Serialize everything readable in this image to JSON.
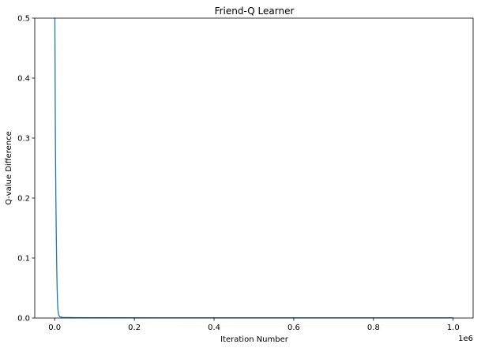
{
  "chart_data": {
    "type": "line",
    "title": "Friend-Q Learner",
    "xlabel": "Iteration Number",
    "ylabel": "Q-value Difference",
    "x_offset_label": "1e6",
    "xlim": [
      -0.05,
      1.05
    ],
    "ylim": [
      0,
      0.5
    ],
    "x_ticks": [
      0.0,
      0.2,
      0.4,
      0.6,
      0.8,
      1.0
    ],
    "x_tick_labels": [
      "0.0",
      "0.2",
      "0.4",
      "0.6",
      "0.8",
      "1.0"
    ],
    "y_ticks": [
      0.0,
      0.1,
      0.2,
      0.3,
      0.4,
      0.5
    ],
    "y_tick_labels": [
      "0.0",
      "0.1",
      "0.2",
      "0.3",
      "0.4",
      "0.5"
    ],
    "grid": false,
    "line_color": "#1f77b4",
    "series": [
      {
        "x": [
          0.0,
          0.0005,
          0.001,
          0.0015,
          0.002,
          0.003,
          0.004,
          0.005,
          0.006,
          0.007,
          0.008,
          0.01,
          0.013,
          0.02,
          0.05,
          0.1,
          0.3,
          0.5,
          0.7,
          0.9,
          1.0
        ],
        "values": [
          0.5,
          0.5,
          0.42,
          0.34,
          0.28,
          0.2,
          0.14,
          0.09,
          0.055,
          0.03,
          0.015,
          0.005,
          0.002,
          0.001,
          0.0006,
          0.0004,
          0.0003,
          0.0003,
          0.0003,
          0.0003,
          0.0003
        ]
      }
    ]
  }
}
